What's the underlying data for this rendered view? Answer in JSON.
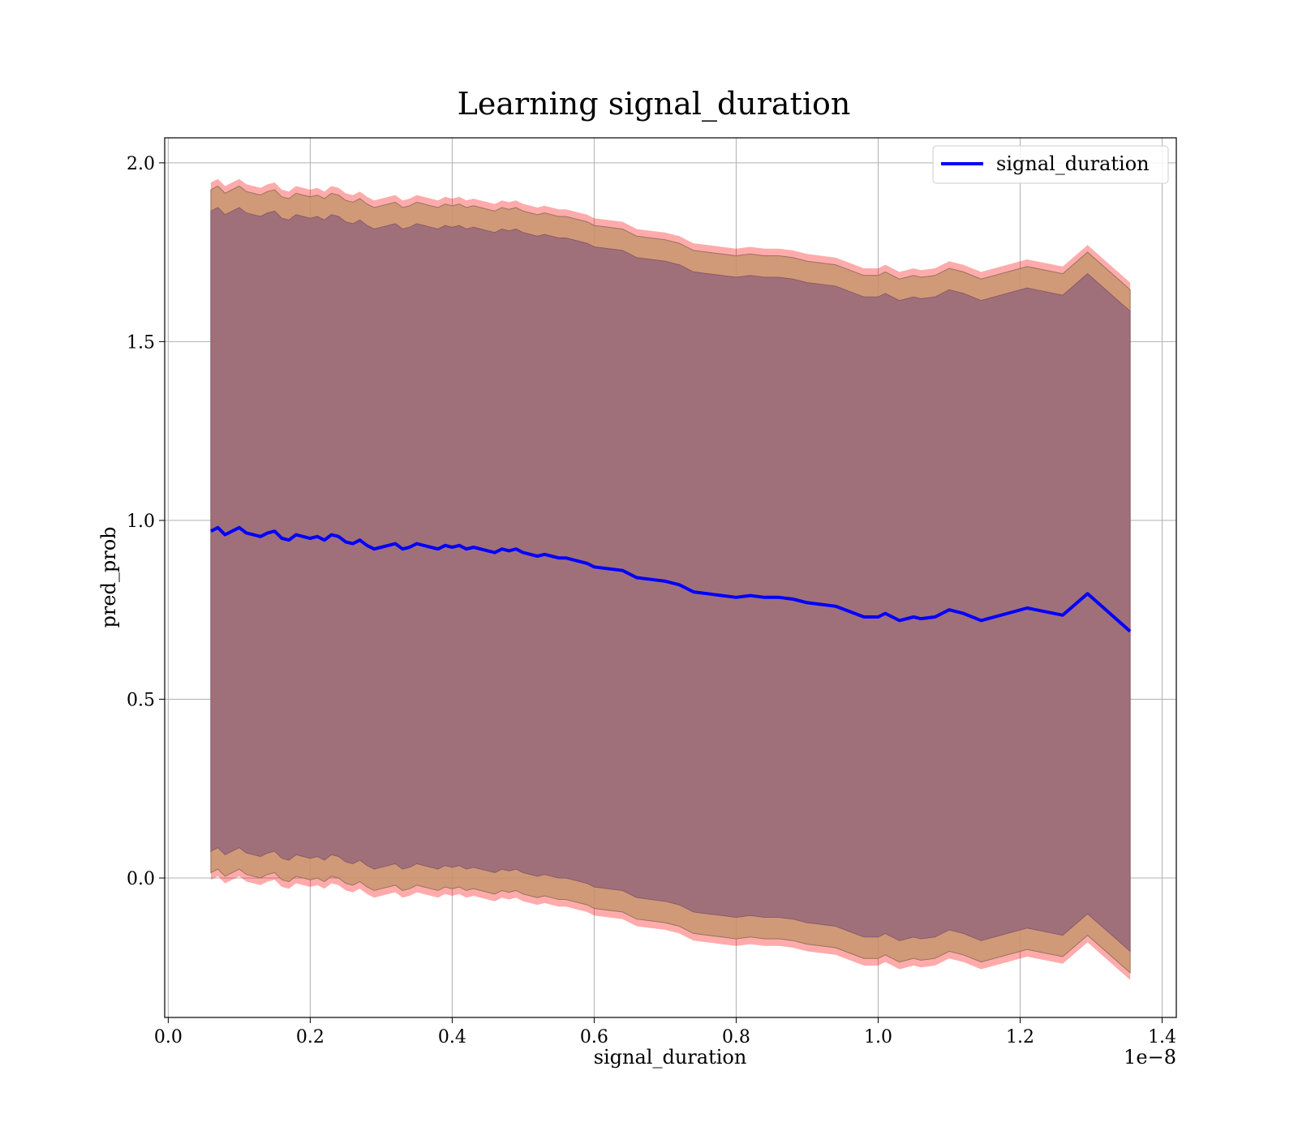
{
  "chart_data": {
    "type": "line",
    "title": "Learning signal_duration",
    "xlabel": "signal_duration",
    "ylabel": "pred_prob",
    "x_offset_label": "1e−8",
    "xlim": [
      -0.005,
      1.42
    ],
    "ylim": [
      -0.39,
      2.07
    ],
    "x_ticks": [
      0.0,
      0.2,
      0.4,
      0.6,
      0.8,
      1.0,
      1.2,
      1.4
    ],
    "x_tick_labels": [
      "0.0",
      "0.2",
      "0.4",
      "0.6",
      "0.8",
      "1.0",
      "1.2",
      "1.4"
    ],
    "y_ticks": [
      0.0,
      0.5,
      1.0,
      1.5,
      2.0
    ],
    "y_tick_labels": [
      "0.0",
      "0.5",
      "1.0",
      "1.5",
      "2.0"
    ],
    "grid": true,
    "legend": {
      "placement": "top-right",
      "entries": [
        "signal_duration"
      ]
    },
    "colors": {
      "line": "#0000ff",
      "outer_band": "#ff0000",
      "middle_band": "#c8966e",
      "inner_band": "#a0707a"
    },
    "series": [
      {
        "name": "signal_duration",
        "x": [
          0.06,
          0.07,
          0.08,
          0.09,
          0.1,
          0.11,
          0.12,
          0.13,
          0.14,
          0.15,
          0.16,
          0.17,
          0.18,
          0.19,
          0.2,
          0.21,
          0.22,
          0.23,
          0.24,
          0.25,
          0.26,
          0.27,
          0.28,
          0.29,
          0.3,
          0.31,
          0.32,
          0.33,
          0.34,
          0.35,
          0.36,
          0.37,
          0.38,
          0.39,
          0.4,
          0.41,
          0.42,
          0.43,
          0.44,
          0.45,
          0.46,
          0.47,
          0.48,
          0.49,
          0.5,
          0.51,
          0.52,
          0.53,
          0.54,
          0.55,
          0.56,
          0.57,
          0.58,
          0.59,
          0.6,
          0.62,
          0.64,
          0.66,
          0.68,
          0.7,
          0.72,
          0.74,
          0.76,
          0.78,
          0.8,
          0.82,
          0.84,
          0.86,
          0.88,
          0.9,
          0.92,
          0.94,
          0.96,
          0.98,
          1.0,
          1.01,
          1.03,
          1.05,
          1.06,
          1.08,
          1.1,
          1.12,
          1.145,
          1.21,
          1.26,
          1.295,
          1.355
        ],
        "y": [
          0.97,
          0.98,
          0.96,
          0.97,
          0.98,
          0.965,
          0.96,
          0.955,
          0.965,
          0.97,
          0.95,
          0.945,
          0.96,
          0.955,
          0.95,
          0.955,
          0.945,
          0.96,
          0.955,
          0.94,
          0.935,
          0.945,
          0.93,
          0.92,
          0.925,
          0.93,
          0.935,
          0.92,
          0.925,
          0.935,
          0.93,
          0.925,
          0.92,
          0.93,
          0.925,
          0.93,
          0.92,
          0.925,
          0.92,
          0.915,
          0.91,
          0.92,
          0.915,
          0.92,
          0.91,
          0.905,
          0.9,
          0.905,
          0.9,
          0.895,
          0.895,
          0.89,
          0.885,
          0.88,
          0.87,
          0.865,
          0.86,
          0.84,
          0.835,
          0.83,
          0.82,
          0.8,
          0.795,
          0.79,
          0.785,
          0.79,
          0.785,
          0.785,
          0.78,
          0.77,
          0.765,
          0.76,
          0.745,
          0.73,
          0.73,
          0.74,
          0.72,
          0.73,
          0.725,
          0.73,
          0.75,
          0.74,
          0.72,
          0.755,
          0.735,
          0.795,
          0.69
        ],
        "inner_halfwidth": 0.895,
        "middle_halfwidth": 0.955,
        "outer_halfwidth": 0.975
      }
    ]
  }
}
